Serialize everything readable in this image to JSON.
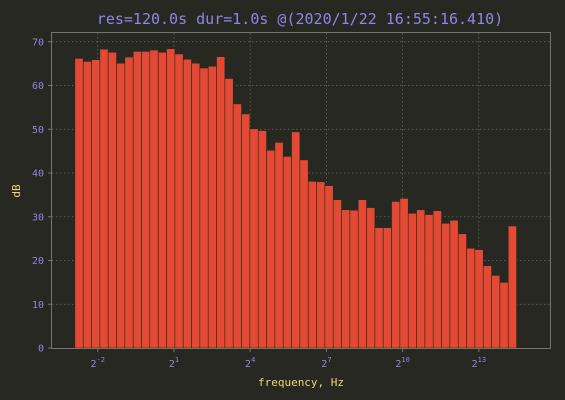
{
  "chart_data": {
    "type": "bar",
    "title": "res=120.0s  dur=1.0s @(2020/1/22 16:55:16.410)",
    "xlabel": "frequency, Hz",
    "ylabel": "dB",
    "x_scale": "log2",
    "xlim_log2": [
      -3.8,
      15.8
    ],
    "ylim": [
      0,
      72
    ],
    "yticks": [
      0,
      10,
      20,
      30,
      40,
      50,
      60,
      70
    ],
    "xticks": [
      {
        "exp": -2,
        "label": "2",
        "sup": "-2"
      },
      {
        "exp": 1,
        "label": "2",
        "sup": "1"
      },
      {
        "exp": 4,
        "label": "2",
        "sup": "4"
      },
      {
        "exp": 7,
        "label": "2",
        "sup": "7"
      },
      {
        "exp": 10,
        "label": "2",
        "sup": "10"
      },
      {
        "exp": 13,
        "label": "2",
        "sup": "13"
      }
    ],
    "grid": true,
    "bar_color": "#e44a33",
    "bin_start_log2": -2.9,
    "bin_width_log2": 0.328,
    "values": [
      66.2,
      65.5,
      65.9,
      68.3,
      67.6,
      65.1,
      66.5,
      67.8,
      67.8,
      68.1,
      67.6,
      68.4,
      67.2,
      66.0,
      65.1,
      64.0,
      64.4,
      66.6,
      61.6,
      55.8,
      53.5,
      50.1,
      49.7,
      45.2,
      47.0,
      43.8,
      49.4,
      43.0,
      38.1,
      38.0,
      37.1,
      33.9,
      31.6,
      31.5,
      33.9,
      32.1,
      27.5,
      27.5,
      33.5,
      34.2,
      30.8,
      31.6,
      30.5,
      31.4,
      28.5,
      29.2,
      26.1,
      22.8,
      22.5,
      18.8,
      16.6,
      15.0,
      27.9
    ]
  },
  "colors": {
    "background": "#272822",
    "title": "#8f86e6",
    "tick": "#8f86e6",
    "label": "#e6db74",
    "frame": "#75756a",
    "grid": "#6b6b5a"
  }
}
